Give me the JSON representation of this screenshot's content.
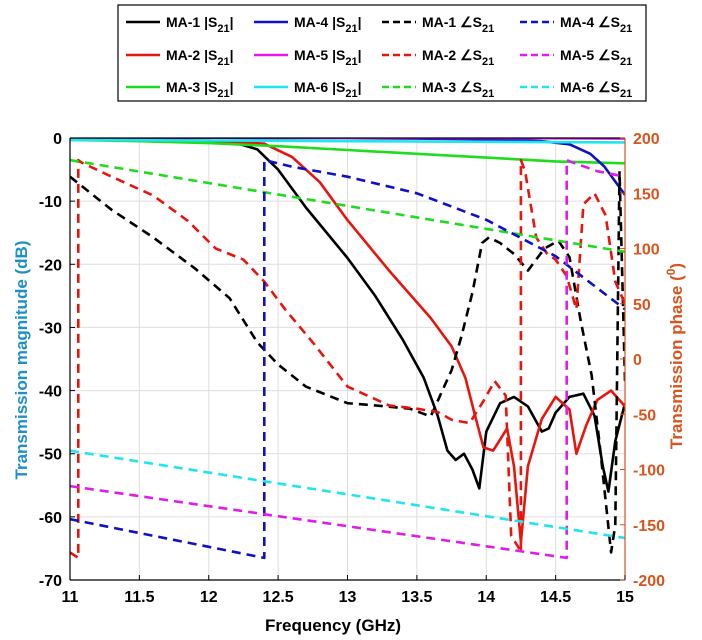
{
  "chart_data": {
    "type": "line",
    "xlabel": "Frequency (GHz)",
    "ylabel_left": "Transmission magnitude (dB)",
    "ylabel_right": "Transmission phase (0)",
    "xlim": [
      11,
      15
    ],
    "ylim_left": [
      -70,
      0
    ],
    "ylim_right": [
      -200,
      200
    ],
    "xticks": [
      "11",
      "11.5",
      "12",
      "12.5",
      "13",
      "13.5",
      "14",
      "14.5",
      "15"
    ],
    "yticks_left": [
      "0",
      "-10",
      "-20",
      "-30",
      "-40",
      "-50",
      "-60",
      "-70"
    ],
    "yticks_right": [
      "200",
      "150",
      "100",
      "50",
      "0",
      "-50",
      "-100",
      "-150",
      "-200"
    ],
    "colors": {
      "left_axis": "#1e90c8",
      "right_axis": "#d9541e",
      "grid": "#dedede"
    },
    "legend": {
      "placement": "top",
      "entries": [
        {
          "label": "MA-1 |S21|",
          "color": "#000000",
          "dash": "solid"
        },
        {
          "label": "MA-4 |S21|",
          "color": "#1010c8",
          "dash": "solid"
        },
        {
          "label": "MA-1 ∠S21",
          "color": "#000000",
          "dash": "dashed"
        },
        {
          "label": "MA-4 ∠S21",
          "color": "#1010c8",
          "dash": "dashed"
        },
        {
          "label": "MA-2 |S21|",
          "color": "#e8140e",
          "dash": "solid"
        },
        {
          "label": "MA-5 |S21|",
          "color": "#e21ce8",
          "dash": "solid"
        },
        {
          "label": "MA-2 ∠S21",
          "color": "#e8140e",
          "dash": "dashed"
        },
        {
          "label": "MA-5 ∠S21",
          "color": "#e21ce8",
          "dash": "dashed"
        },
        {
          "label": "MA-3 |S21|",
          "color": "#1edc1e",
          "dash": "solid"
        },
        {
          "label": "MA-6 |S21|",
          "color": "#1ee6ee",
          "dash": "solid"
        },
        {
          "label": "MA-3 ∠S21",
          "color": "#1edc1e",
          "dash": "dashed"
        },
        {
          "label": "MA-6 ∠S21",
          "color": "#1ee6ee",
          "dash": "dashed"
        }
      ]
    },
    "series": [
      {
        "name": "MA-1 |S21|",
        "axis": "left",
        "color": "#000000",
        "dash": "solid",
        "x": [
          11,
          11.5,
          12,
          12.2,
          12.35,
          12.5,
          12.7,
          13,
          13.2,
          13.4,
          13.55,
          13.65,
          13.72,
          13.78,
          13.84,
          13.9,
          13.95,
          14.0,
          14.1,
          14.2,
          14.3,
          14.4,
          14.45,
          14.5,
          14.6,
          14.7,
          14.78,
          14.84,
          14.88,
          14.93,
          15
        ],
        "y": [
          -0.2,
          -0.3,
          -0.5,
          -0.8,
          -1.8,
          -5,
          -11,
          -19,
          -25,
          -32,
          -38,
          -44,
          -49.5,
          -51,
          -50,
          -52.5,
          -55.5,
          -46.5,
          -42,
          -41,
          -42.5,
          -46.5,
          -46,
          -43.5,
          -41,
          -40.5,
          -44,
          -52,
          -56,
          -48,
          -42
        ]
      },
      {
        "name": "MA-2 |S21|",
        "axis": "left",
        "color": "#e8140e",
        "dash": "solid",
        "x": [
          11,
          11.5,
          12,
          12.4,
          12.6,
          12.8,
          13,
          13.3,
          13.6,
          13.75,
          13.85,
          13.92,
          13.98,
          14.05,
          14.15,
          14.2,
          14.25,
          14.3,
          14.4,
          14.5,
          14.6,
          14.65,
          14.72,
          14.8,
          14.9,
          15
        ],
        "y": [
          -0.2,
          -0.3,
          -0.4,
          -0.9,
          -3,
          -7,
          -13,
          -21,
          -28.5,
          -33,
          -38,
          -44,
          -49,
          -49.5,
          -46,
          -52,
          -64,
          -52,
          -44.5,
          -41,
          -43,
          -50,
          -45.5,
          -41.5,
          -40,
          -42.5
        ]
      },
      {
        "name": "MA-3 |S21|",
        "axis": "left",
        "color": "#1edc1e",
        "dash": "solid",
        "x": [
          11,
          11.5,
          12,
          12.5,
          13,
          13.5,
          14,
          14.5,
          15
        ],
        "y": [
          -0.3,
          -0.5,
          -0.8,
          -1.3,
          -1.9,
          -2.5,
          -3.1,
          -3.7,
          -4
        ]
      },
      {
        "name": "MA-4 |S21|",
        "axis": "left",
        "color": "#1010c8",
        "dash": "solid",
        "x": [
          11,
          11.5,
          12,
          12.5,
          13,
          13.5,
          14,
          14.4,
          14.6,
          14.75,
          14.85,
          14.95,
          15
        ],
        "y": [
          0.05,
          0.05,
          0.05,
          0,
          0,
          -0.1,
          -0.2,
          -0.5,
          -1,
          -2.5,
          -4.5,
          -7.5,
          -9
        ]
      },
      {
        "name": "MA-5 |S21|",
        "axis": "left",
        "color": "#e21ce8",
        "dash": "solid",
        "x": [
          11,
          12,
          13,
          14,
          15
        ],
        "y": [
          0.1,
          0.1,
          0.05,
          0,
          -0.1
        ]
      },
      {
        "name": "MA-6 |S21|",
        "axis": "left",
        "color": "#1ee6ee",
        "dash": "solid",
        "x": [
          11,
          12,
          13,
          14,
          15
        ],
        "y": [
          -0.3,
          -0.4,
          -0.5,
          -0.6,
          -0.7
        ]
      },
      {
        "name": "MA-1 ∠S21",
        "axis": "right",
        "color": "#000000",
        "dash": "dashed",
        "x": [
          11,
          11.3,
          11.6,
          11.9,
          12.15,
          12.35,
          12.5,
          12.7,
          13,
          13.2,
          13.45,
          13.6,
          13.75,
          13.82,
          13.9,
          13.97,
          14.02,
          14.1,
          14.2,
          14.3,
          14.42,
          14.52,
          14.6,
          14.68,
          14.76,
          14.82,
          14.9,
          14.93,
          14.96,
          15
        ],
        "y": [
          165,
          135,
          110,
          82,
          55,
          15,
          -5,
          -25,
          -40,
          -42,
          -45,
          -52,
          -10,
          20,
          60,
          105,
          110,
          105,
          95,
          80,
          100,
          107,
          92,
          35,
          -15,
          -80,
          -175,
          -150,
          170,
          -20
        ]
      },
      {
        "name": "MA-2 ∠S21",
        "axis": "right",
        "color": "#e8140e",
        "dash": "dashed",
        "x": [
          11,
          11.06,
          11.06,
          11.08,
          11.3,
          11.6,
          11.85,
          12.05,
          12.25,
          12.4,
          12.55,
          12.75,
          13,
          13.3,
          13.5,
          13.65,
          13.75,
          13.88,
          13.98,
          14.06,
          14.14,
          14.18,
          14.23,
          14.25,
          14.25,
          14.28,
          14.36,
          14.44,
          14.5,
          14.58,
          14.65,
          14.7,
          14.78,
          14.86,
          14.93,
          15
        ],
        "y": [
          -175,
          -180,
          180,
          178,
          165,
          148,
          125,
          100,
          90,
          70,
          45,
          15,
          -25,
          -42,
          -45,
          -48,
          -55,
          -58,
          -38,
          -20,
          -33,
          -160,
          -170,
          -175,
          180,
          170,
          110,
          95,
          90,
          75,
          45,
          140,
          150,
          130,
          70,
          50
        ]
      },
      {
        "name": "MA-3 ∠S21",
        "axis": "right",
        "color": "#1edc1e",
        "dash": "dashed",
        "x": [
          11,
          15
        ],
        "y": [
          180,
          97
        ]
      },
      {
        "name": "MA-4 ∠S21",
        "axis": "right",
        "color": "#1010c8",
        "dash": "dashed",
        "x": [
          11,
          12.4,
          12.4,
          12.6,
          13,
          13.5,
          14,
          14.5,
          15
        ],
        "y": [
          -145,
          -180,
          180,
          174,
          165,
          150,
          126,
          93,
          45
        ]
      },
      {
        "name": "MA-5 ∠S21",
        "axis": "right",
        "color": "#e21ce8",
        "dash": "dashed",
        "x": [
          11,
          14.58,
          14.58,
          14.62,
          14.8,
          15
        ],
        "y": [
          -115,
          -180,
          180,
          178,
          170,
          165
        ]
      },
      {
        "name": "MA-6 ∠S21",
        "axis": "right",
        "color": "#1ee6ee",
        "dash": "dashed",
        "x": [
          11,
          15
        ],
        "y": [
          -83,
          -162
        ]
      }
    ]
  }
}
